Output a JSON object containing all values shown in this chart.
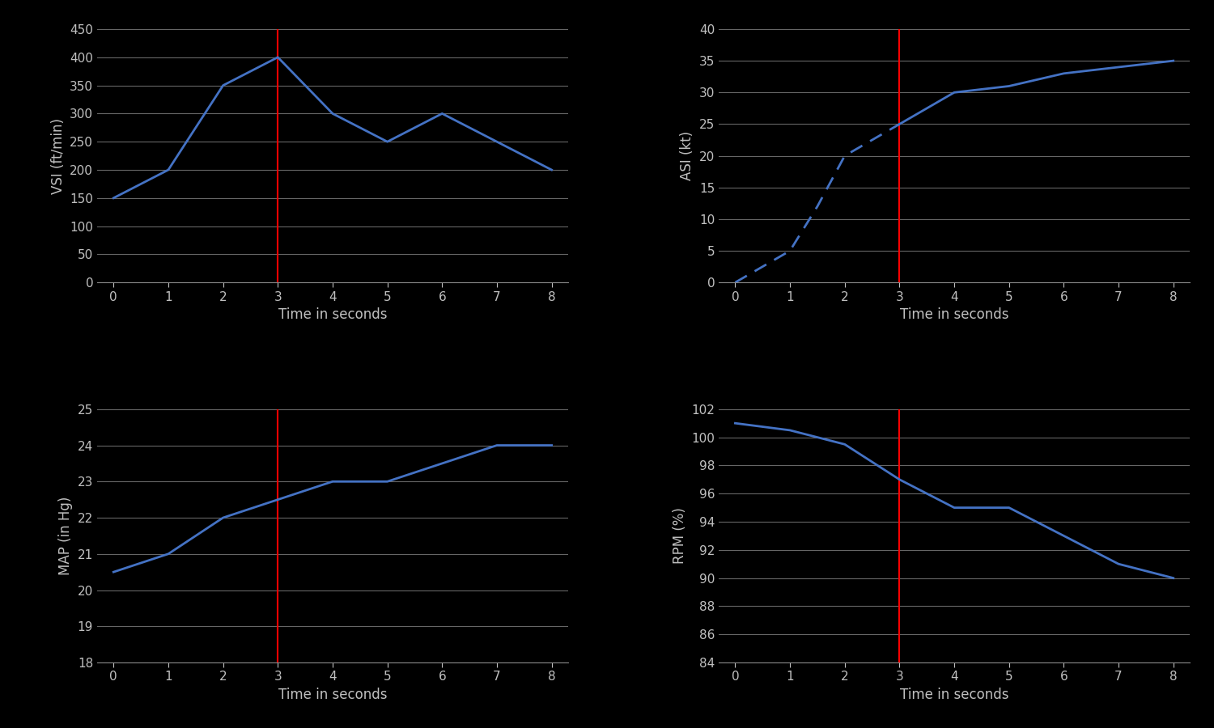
{
  "background_color": "#000000",
  "axes_background": "#000000",
  "line_color": "#4472c4",
  "red_line_color": "#ff0000",
  "grid_color": "#666666",
  "text_color": "#c0c0c0",
  "spine_color": "#888888",
  "vsi": {
    "x": [
      0,
      1,
      2,
      3,
      4,
      5,
      6,
      7,
      8
    ],
    "y": [
      150,
      200,
      350,
      400,
      300,
      250,
      300,
      250,
      200
    ],
    "ylabel": "VSI (ft/min)",
    "xlabel": "Time in seconds",
    "ylim": [
      0,
      450
    ],
    "yticks": [
      0,
      50,
      100,
      150,
      200,
      250,
      300,
      350,
      400,
      450
    ],
    "xticks": [
      0,
      1,
      2,
      3,
      4,
      5,
      6,
      7,
      8
    ]
  },
  "asi": {
    "x_dashed": [
      0,
      0.5,
      1,
      1.5,
      2,
      2.5,
      3
    ],
    "y_dashed": [
      0,
      2.5,
      5,
      12,
      20,
      22.5,
      25
    ],
    "x_solid": [
      3,
      4,
      5,
      6,
      7,
      8
    ],
    "y_solid": [
      25,
      30,
      31,
      33,
      34,
      35
    ],
    "ylabel": "ASI (kt)",
    "xlabel": "Time in seconds",
    "ylim": [
      0,
      40
    ],
    "yticks": [
      0,
      5,
      10,
      15,
      20,
      25,
      30,
      35,
      40
    ],
    "xticks": [
      0,
      1,
      2,
      3,
      4,
      5,
      6,
      7,
      8
    ]
  },
  "map": {
    "x": [
      0,
      1,
      2,
      3,
      4,
      5,
      6,
      7,
      8
    ],
    "y": [
      20.5,
      21.0,
      22.0,
      22.5,
      23.0,
      23.0,
      23.5,
      24.0,
      24.0
    ],
    "ylabel": "MAP (in Hg)",
    "xlabel": "Time in seconds",
    "ylim": [
      18,
      25
    ],
    "yticks": [
      18,
      19,
      20,
      21,
      22,
      23,
      24,
      25
    ],
    "xticks": [
      0,
      1,
      2,
      3,
      4,
      5,
      6,
      7,
      8
    ]
  },
  "rpm": {
    "x": [
      0,
      1,
      2,
      3,
      4,
      5,
      6,
      7,
      8
    ],
    "y": [
      101,
      100.5,
      99.5,
      97,
      95,
      95,
      93,
      91,
      90
    ],
    "ylabel": "RPM (%)",
    "xlabel": "Time in seconds",
    "ylim": [
      84,
      102
    ],
    "yticks": [
      84,
      86,
      88,
      90,
      92,
      94,
      96,
      98,
      100,
      102
    ],
    "xticks": [
      0,
      1,
      2,
      3,
      4,
      5,
      6,
      7,
      8
    ]
  },
  "red_line_x": 3,
  "title_fontsize": 11,
  "label_fontsize": 12,
  "tick_fontsize": 11
}
